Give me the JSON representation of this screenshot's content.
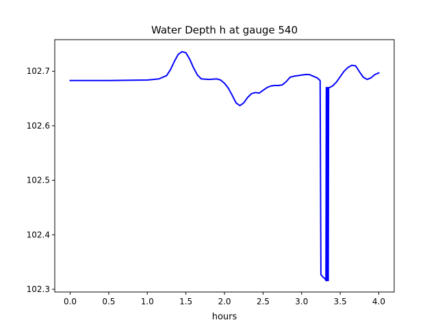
{
  "chart_data": {
    "type": "line",
    "title": "Water Depth h at gauge 540",
    "xlabel": "hours",
    "ylabel": "",
    "xlim": [
      -0.2,
      4.2
    ],
    "ylim": [
      102.295,
      102.758
    ],
    "xticks": [
      0.0,
      0.5,
      1.0,
      1.5,
      2.0,
      2.5,
      3.0,
      3.5,
      4.0
    ],
    "xtick_labels": [
      "0.0",
      "0.5",
      "1.0",
      "1.5",
      "2.0",
      "2.5",
      "3.0",
      "3.5",
      "4.0"
    ],
    "yticks": [
      102.3,
      102.4,
      102.5,
      102.6,
      102.7
    ],
    "ytick_labels": [
      "102.3",
      "102.4",
      "102.5",
      "102.6",
      "102.7"
    ],
    "grid": false,
    "colors": {
      "line": "#0000ff",
      "axes": "#000000",
      "background": "#ffffff"
    },
    "series": [
      {
        "x": [
          0.0,
          0.5,
          1.0,
          1.15,
          1.25,
          1.3,
          1.35,
          1.4,
          1.45,
          1.5,
          1.55,
          1.6,
          1.65,
          1.7,
          1.8,
          1.9,
          1.95,
          2.0,
          2.05,
          2.1,
          2.15,
          2.2,
          2.25,
          2.3,
          2.35,
          2.4,
          2.45,
          2.5,
          2.55,
          2.6,
          2.65,
          2.7,
          2.75,
          2.8,
          2.85,
          2.9,
          2.95,
          3.0,
          3.05,
          3.1,
          3.15,
          3.2,
          3.24,
          3.245,
          3.25,
          3.28,
          3.3,
          3.31,
          3.315,
          3.32,
          3.325,
          3.33,
          3.335,
          3.34,
          3.345,
          3.35,
          3.355,
          3.36,
          3.4,
          3.45,
          3.5,
          3.55,
          3.6,
          3.65,
          3.7,
          3.75,
          3.8,
          3.85,
          3.9,
          3.95,
          4.0
        ],
        "y": [
          102.683,
          102.683,
          102.684,
          102.686,
          102.692,
          102.703,
          102.718,
          102.731,
          102.736,
          102.734,
          102.722,
          102.706,
          102.693,
          102.686,
          102.685,
          102.686,
          102.684,
          102.678,
          102.669,
          102.656,
          102.642,
          102.637,
          102.642,
          102.652,
          102.659,
          102.661,
          102.66,
          102.665,
          102.67,
          102.673,
          102.674,
          102.674,
          102.675,
          102.681,
          102.689,
          102.691,
          102.692,
          102.693,
          102.694,
          102.694,
          102.691,
          102.688,
          102.683,
          102.5,
          102.327,
          102.322,
          102.32,
          102.318,
          102.316,
          102.67,
          102.316,
          102.67,
          102.316,
          102.67,
          102.316,
          102.67,
          102.67,
          102.67,
          102.673,
          102.68,
          102.69,
          102.7,
          102.707,
          102.711,
          102.71,
          102.699,
          102.689,
          102.685,
          102.688,
          102.694,
          102.697
        ]
      }
    ]
  }
}
